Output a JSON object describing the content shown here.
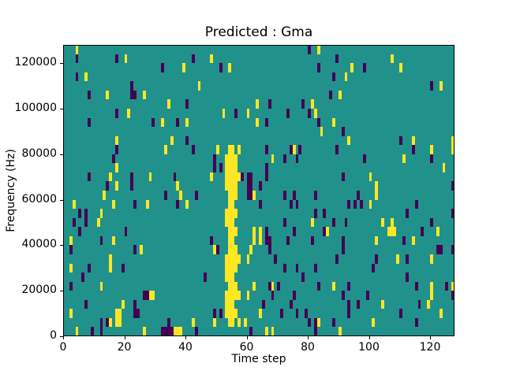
{
  "chart_data": {
    "type": "heatmap",
    "title": "Predicted : Gma",
    "xlabel": "Time step",
    "ylabel": "Frequency (Hz)",
    "x_range": [
      0,
      128
    ],
    "y_range": [
      0,
      128000
    ],
    "x_ticks": [
      0,
      20,
      40,
      60,
      80,
      100,
      120
    ],
    "y_ticks": [
      0,
      20000,
      40000,
      60000,
      80000,
      100000,
      120000
    ],
    "n_cols": 128,
    "n_rows": 32,
    "hz_per_row": 4000,
    "grid": false,
    "legend_position": "none",
    "colormap": {
      "name": "viridis",
      "background_color": "#21918c",
      "low_color": "#440154",
      "high_color": "#fde725",
      "value_codes": {
        "p": "low_color",
        "y": "high_color"
      }
    },
    "cells_format": "[col 0-127 left-to-right, row 0-31 top-to-bottom (row 0 = 124000-128000 Hz band), value code]",
    "streak_cells_format": "[col, row] - dense yellow event spanning ~0-80000 Hz around time steps 53-57",
    "streak_cells": [
      [
        54,
        11
      ],
      [
        55,
        11
      ],
      [
        53,
        12
      ],
      [
        54,
        12
      ],
      [
        55,
        12
      ],
      [
        56,
        12
      ],
      [
        53,
        13
      ],
      [
        54,
        13
      ],
      [
        55,
        13
      ],
      [
        56,
        13
      ],
      [
        53,
        14
      ],
      [
        54,
        14
      ],
      [
        55,
        14
      ],
      [
        56,
        14
      ],
      [
        57,
        14
      ],
      [
        53,
        15
      ],
      [
        54,
        15
      ],
      [
        55,
        15
      ],
      [
        56,
        15
      ],
      [
        54,
        16
      ],
      [
        55,
        16
      ],
      [
        56,
        16
      ],
      [
        54,
        17
      ],
      [
        55,
        17
      ],
      [
        53,
        18
      ],
      [
        54,
        18
      ],
      [
        55,
        18
      ],
      [
        56,
        18
      ],
      [
        53,
        19
      ],
      [
        54,
        19
      ],
      [
        55,
        19
      ],
      [
        54,
        20
      ],
      [
        55,
        20
      ],
      [
        56,
        20
      ],
      [
        54,
        21
      ],
      [
        55,
        21
      ],
      [
        54,
        22
      ],
      [
        55,
        22
      ],
      [
        56,
        22
      ],
      [
        53,
        23
      ],
      [
        54,
        23
      ],
      [
        55,
        23
      ],
      [
        56,
        23
      ],
      [
        57,
        23
      ],
      [
        53,
        24
      ],
      [
        54,
        24
      ],
      [
        55,
        24
      ],
      [
        56,
        24
      ],
      [
        53,
        25
      ],
      [
        54,
        25
      ],
      [
        55,
        25
      ],
      [
        54,
        26
      ],
      [
        55,
        26
      ],
      [
        56,
        26
      ],
      [
        53,
        27
      ],
      [
        54,
        27
      ],
      [
        55,
        27
      ],
      [
        56,
        27
      ],
      [
        57,
        27
      ],
      [
        53,
        28
      ],
      [
        54,
        28
      ],
      [
        55,
        28
      ],
      [
        53,
        29
      ],
      [
        54,
        29
      ],
      [
        55,
        29
      ],
      [
        56,
        29
      ],
      [
        54,
        30
      ],
      [
        55,
        30
      ]
    ],
    "cells": [
      [
        4,
        0,
        "y"
      ],
      [
        80,
        0,
        "p"
      ],
      [
        83,
        0,
        "y"
      ],
      [
        4,
        1,
        "p"
      ],
      [
        17,
        1,
        "p"
      ],
      [
        20,
        1,
        "y"
      ],
      [
        42,
        1,
        "p"
      ],
      [
        48,
        1,
        "y"
      ],
      [
        89,
        1,
        "p"
      ],
      [
        107,
        1,
        "y"
      ],
      [
        32,
        2,
        "p"
      ],
      [
        39,
        2,
        "y"
      ],
      [
        51,
        2,
        "p"
      ],
      [
        54,
        2,
        "y"
      ],
      [
        83,
        2,
        "p"
      ],
      [
        94,
        2,
        "y"
      ],
      [
        98,
        2,
        "p"
      ],
      [
        110,
        2,
        "y"
      ],
      [
        4,
        3,
        "p"
      ],
      [
        7,
        3,
        "y"
      ],
      [
        88,
        3,
        "p"
      ],
      [
        92,
        3,
        "y"
      ],
      [
        22,
        4,
        "p"
      ],
      [
        44,
        4,
        "y"
      ],
      [
        120,
        4,
        "p"
      ],
      [
        123,
        4,
        "y"
      ],
      [
        8,
        5,
        "p"
      ],
      [
        14,
        5,
        "y"
      ],
      [
        22,
        5,
        "p"
      ],
      [
        23,
        5,
        "p"
      ],
      [
        26,
        5,
        "y"
      ],
      [
        87,
        5,
        "p"
      ],
      [
        90,
        5,
        "y"
      ],
      [
        34,
        6,
        "y"
      ],
      [
        40,
        6,
        "p"
      ],
      [
        63,
        6,
        "y"
      ],
      [
        67,
        6,
        "p"
      ],
      [
        78,
        6,
        "p"
      ],
      [
        81,
        6,
        "y"
      ],
      [
        17,
        7,
        "p"
      ],
      [
        21,
        7,
        "y"
      ],
      [
        52,
        7,
        "y"
      ],
      [
        56,
        7,
        "p"
      ],
      [
        60,
        7,
        "y"
      ],
      [
        73,
        7,
        "p"
      ],
      [
        80,
        7,
        "p"
      ],
      [
        82,
        7,
        "y"
      ],
      [
        8,
        8,
        "p"
      ],
      [
        29,
        8,
        "p"
      ],
      [
        32,
        8,
        "y"
      ],
      [
        37,
        8,
        "p"
      ],
      [
        40,
        8,
        "y"
      ],
      [
        63,
        8,
        "y"
      ],
      [
        66,
        8,
        "p"
      ],
      [
        83,
        8,
        "p"
      ],
      [
        88,
        8,
        "y"
      ],
      [
        84,
        9,
        "y"
      ],
      [
        91,
        9,
        "p"
      ],
      [
        17,
        10,
        "y"
      ],
      [
        35,
        10,
        "y"
      ],
      [
        40,
        10,
        "p"
      ],
      [
        93,
        10,
        "y"
      ],
      [
        110,
        10,
        "p"
      ],
      [
        114,
        10,
        "y"
      ],
      [
        127,
        10,
        "y"
      ],
      [
        17,
        11,
        "p"
      ],
      [
        33,
        11,
        "y"
      ],
      [
        42,
        11,
        "p"
      ],
      [
        50,
        11,
        "y"
      ],
      [
        57,
        11,
        "y"
      ],
      [
        66,
        11,
        "p"
      ],
      [
        74,
        11,
        "p"
      ],
      [
        75,
        11,
        "y"
      ],
      [
        77,
        11,
        "p"
      ],
      [
        89,
        11,
        "p"
      ],
      [
        114,
        11,
        "p"
      ],
      [
        120,
        11,
        "y"
      ],
      [
        127,
        11,
        "y"
      ],
      [
        16,
        12,
        "p"
      ],
      [
        49,
        12,
        "p"
      ],
      [
        68,
        12,
        "y"
      ],
      [
        72,
        12,
        "p"
      ],
      [
        76,
        12,
        "p"
      ],
      [
        98,
        12,
        "p"
      ],
      [
        111,
        12,
        "y"
      ],
      [
        120,
        12,
        "p"
      ],
      [
        17,
        13,
        "y"
      ],
      [
        49,
        13,
        "p"
      ],
      [
        51,
        13,
        "p"
      ],
      [
        66,
        13,
        "p"
      ],
      [
        124,
        13,
        "y"
      ],
      [
        8,
        14,
        "p"
      ],
      [
        15,
        14,
        "y"
      ],
      [
        22,
        14,
        "p"
      ],
      [
        28,
        14,
        "y"
      ],
      [
        36,
        14,
        "p"
      ],
      [
        48,
        14,
        "y"
      ],
      [
        58,
        14,
        "p"
      ],
      [
        60,
        14,
        "p"
      ],
      [
        61,
        14,
        "p"
      ],
      [
        66,
        14,
        "p"
      ],
      [
        91,
        14,
        "p"
      ],
      [
        100,
        14,
        "y"
      ],
      [
        14,
        15,
        "p"
      ],
      [
        17,
        15,
        "y"
      ],
      [
        22,
        15,
        "p"
      ],
      [
        37,
        15,
        "y"
      ],
      [
        60,
        15,
        "p"
      ],
      [
        61,
        15,
        "p"
      ],
      [
        64,
        15,
        "p"
      ],
      [
        102,
        15,
        "y"
      ],
      [
        127,
        15,
        "p"
      ],
      [
        13,
        16,
        "y"
      ],
      [
        33,
        16,
        "p"
      ],
      [
        38,
        16,
        "y"
      ],
      [
        43,
        16,
        "p"
      ],
      [
        60,
        16,
        "p"
      ],
      [
        61,
        16,
        "p"
      ],
      [
        62,
        16,
        "y"
      ],
      [
        72,
        16,
        "p"
      ],
      [
        75,
        16,
        "p"
      ],
      [
        82,
        16,
        "p"
      ],
      [
        96,
        16,
        "p"
      ],
      [
        102,
        16,
        "y"
      ],
      [
        3,
        17,
        "y"
      ],
      [
        16,
        17,
        "y"
      ],
      [
        23,
        17,
        "p"
      ],
      [
        27,
        17,
        "y"
      ],
      [
        37,
        17,
        "p"
      ],
      [
        40,
        17,
        "y"
      ],
      [
        64,
        17,
        "p"
      ],
      [
        74,
        17,
        "p"
      ],
      [
        76,
        17,
        "p"
      ],
      [
        93,
        17,
        "p"
      ],
      [
        95,
        17,
        "p"
      ],
      [
        97,
        17,
        "p"
      ],
      [
        100,
        17,
        "y"
      ],
      [
        115,
        17,
        "p"
      ],
      [
        5,
        18,
        "p"
      ],
      [
        7,
        18,
        "p"
      ],
      [
        12,
        18,
        "y"
      ],
      [
        82,
        18,
        "p"
      ],
      [
        85,
        18,
        "p"
      ],
      [
        112,
        18,
        "p"
      ],
      [
        127,
        18,
        "p"
      ],
      [
        3,
        19,
        "p"
      ],
      [
        7,
        19,
        "p"
      ],
      [
        11,
        19,
        "y"
      ],
      [
        72,
        19,
        "p"
      ],
      [
        81,
        19,
        "y"
      ],
      [
        88,
        19,
        "p"
      ],
      [
        92,
        19,
        "p"
      ],
      [
        104,
        19,
        "y"
      ],
      [
        107,
        19,
        "y"
      ],
      [
        120,
        19,
        "p"
      ],
      [
        5,
        20,
        "p"
      ],
      [
        20,
        20,
        "p"
      ],
      [
        62,
        20,
        "y"
      ],
      [
        64,
        20,
        "y"
      ],
      [
        66,
        20,
        "p"
      ],
      [
        75,
        20,
        "p"
      ],
      [
        85,
        20,
        "p"
      ],
      [
        86,
        20,
        "y"
      ],
      [
        106,
        20,
        "y"
      ],
      [
        107,
        20,
        "y"
      ],
      [
        108,
        20,
        "y"
      ],
      [
        117,
        20,
        "p"
      ],
      [
        122,
        20,
        "y"
      ],
      [
        2,
        21,
        "y"
      ],
      [
        12,
        21,
        "p"
      ],
      [
        16,
        21,
        "y"
      ],
      [
        48,
        21,
        "p"
      ],
      [
        62,
        21,
        "y"
      ],
      [
        64,
        21,
        "y"
      ],
      [
        66,
        21,
        "p"
      ],
      [
        67,
        21,
        "p"
      ],
      [
        73,
        21,
        "p"
      ],
      [
        81,
        21,
        "p"
      ],
      [
        91,
        21,
        "p"
      ],
      [
        102,
        21,
        "y"
      ],
      [
        111,
        21,
        "p"
      ],
      [
        114,
        21,
        "y"
      ],
      [
        2,
        22,
        "p"
      ],
      [
        23,
        22,
        "p"
      ],
      [
        25,
        22,
        "y"
      ],
      [
        49,
        22,
        "y"
      ],
      [
        50,
        22,
        "p"
      ],
      [
        61,
        22,
        "y"
      ],
      [
        67,
        22,
        "p"
      ],
      [
        91,
        22,
        "p"
      ],
      [
        122,
        22,
        "p"
      ],
      [
        123,
        22,
        "p"
      ],
      [
        127,
        22,
        "p"
      ],
      [
        15,
        23,
        "y"
      ],
      [
        60,
        23,
        "y"
      ],
      [
        69,
        23,
        "p"
      ],
      [
        89,
        23,
        "p"
      ],
      [
        102,
        23,
        "p"
      ],
      [
        109,
        23,
        "y"
      ],
      [
        112,
        23,
        "p"
      ],
      [
        120,
        23,
        "y"
      ],
      [
        2,
        24,
        "y"
      ],
      [
        8,
        24,
        "p"
      ],
      [
        15,
        24,
        "y"
      ],
      [
        19,
        24,
        "p"
      ],
      [
        72,
        24,
        "p"
      ],
      [
        76,
        24,
        "p"
      ],
      [
        82,
        24,
        "p"
      ],
      [
        101,
        24,
        "p"
      ],
      [
        6,
        25,
        "p"
      ],
      [
        46,
        25,
        "p"
      ],
      [
        78,
        25,
        "p"
      ],
      [
        112,
        25,
        "p"
      ],
      [
        2,
        26,
        "p"
      ],
      [
        12,
        26,
        "y"
      ],
      [
        62,
        26,
        "y"
      ],
      [
        67,
        26,
        "p"
      ],
      [
        68,
        26,
        "y"
      ],
      [
        70,
        26,
        "p"
      ],
      [
        83,
        26,
        "p"
      ],
      [
        88,
        26,
        "y"
      ],
      [
        93,
        26,
        "p"
      ],
      [
        115,
        26,
        "p"
      ],
      [
        120,
        26,
        "y"
      ],
      [
        125,
        26,
        "p"
      ],
      [
        127,
        26,
        "y"
      ],
      [
        26,
        27,
        "p"
      ],
      [
        27,
        27,
        "p"
      ],
      [
        28,
        27,
        "y"
      ],
      [
        29,
        27,
        "y"
      ],
      [
        60,
        27,
        "y"
      ],
      [
        68,
        27,
        "p"
      ],
      [
        75,
        27,
        "p"
      ],
      [
        91,
        27,
        "p"
      ],
      [
        99,
        27,
        "p"
      ],
      [
        120,
        27,
        "y"
      ],
      [
        127,
        27,
        "p"
      ],
      [
        7,
        28,
        "p"
      ],
      [
        19,
        28,
        "y"
      ],
      [
        23,
        28,
        "p"
      ],
      [
        65,
        28,
        "p"
      ],
      [
        74,
        28,
        "p"
      ],
      [
        93,
        28,
        "p"
      ],
      [
        96,
        28,
        "p"
      ],
      [
        104,
        28,
        "y"
      ],
      [
        116,
        28,
        "p"
      ],
      [
        119,
        28,
        "y"
      ],
      [
        2,
        29,
        "y"
      ],
      [
        17,
        29,
        "y"
      ],
      [
        18,
        29,
        "y"
      ],
      [
        23,
        29,
        "p"
      ],
      [
        24,
        29,
        "p"
      ],
      [
        49,
        29,
        "p"
      ],
      [
        51,
        29,
        "p"
      ],
      [
        64,
        29,
        "y"
      ],
      [
        71,
        29,
        "p"
      ],
      [
        76,
        29,
        "p"
      ],
      [
        79,
        29,
        "p"
      ],
      [
        93,
        29,
        "p"
      ],
      [
        110,
        29,
        "p"
      ],
      [
        123,
        29,
        "y"
      ],
      [
        12,
        30,
        "p"
      ],
      [
        14,
        30,
        "p"
      ],
      [
        15,
        30,
        "y"
      ],
      [
        17,
        30,
        "y"
      ],
      [
        18,
        30,
        "y"
      ],
      [
        34,
        30,
        "p"
      ],
      [
        42,
        30,
        "y"
      ],
      [
        49,
        30,
        "y"
      ],
      [
        57,
        30,
        "y"
      ],
      [
        59,
        30,
        "y"
      ],
      [
        80,
        30,
        "p"
      ],
      [
        82,
        30,
        "p"
      ],
      [
        83,
        30,
        "y"
      ],
      [
        88,
        30,
        "p"
      ],
      [
        101,
        30,
        "y"
      ],
      [
        115,
        30,
        "p"
      ],
      [
        4,
        31,
        "y"
      ],
      [
        9,
        31,
        "p"
      ],
      [
        12,
        31,
        "p"
      ],
      [
        26,
        31,
        "y"
      ],
      [
        32,
        31,
        "p"
      ],
      [
        33,
        31,
        "p"
      ],
      [
        34,
        31,
        "p"
      ],
      [
        35,
        31,
        "p"
      ],
      [
        36,
        31,
        "y"
      ],
      [
        37,
        31,
        "y"
      ],
      [
        38,
        31,
        "y"
      ],
      [
        43,
        31,
        "p"
      ],
      [
        61,
        31,
        "p"
      ],
      [
        66,
        31,
        "y"
      ],
      [
        68,
        31,
        "y"
      ],
      [
        82,
        31,
        "p"
      ],
      [
        90,
        31,
        "y"
      ]
    ]
  }
}
